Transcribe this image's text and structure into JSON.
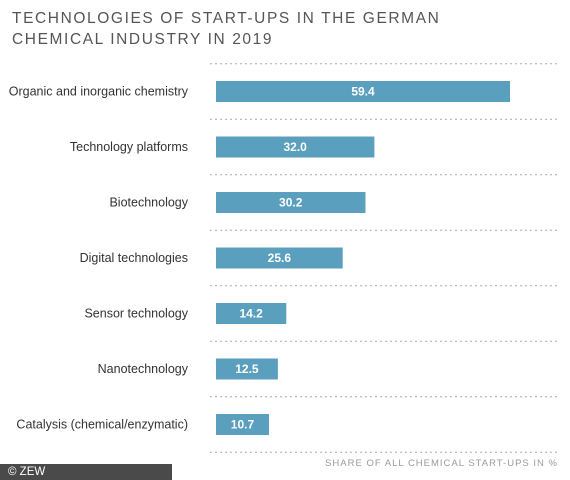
{
  "chart_data": {
    "type": "bar",
    "orientation": "horizontal",
    "title_lines": [
      "TECHNOLOGIES OF START-UPS IN THE GERMAN",
      "CHEMICAL INDUSTRY IN 2019"
    ],
    "categories": [
      "Organic and inorganic chemistry",
      "Technology platforms",
      "Biotechnology",
      "Digital technologies",
      "Sensor technology",
      "Nanotechnology",
      "Catalysis (chemical/enzymatic)"
    ],
    "values": [
      59.4,
      32.0,
      30.2,
      25.6,
      14.2,
      12.5,
      10.7
    ],
    "value_labels": [
      "59.4",
      "32.0",
      "30.2",
      "25.6",
      "14.2",
      "12.5",
      "10.7"
    ],
    "xlabel": "SHARE OF ALL CHEMICAL START-UPS IN %",
    "ylabel": "",
    "xlim": [
      0,
      70
    ],
    "grid": false,
    "bar_color": "#5b9fbf"
  },
  "footer": {
    "credit": "© ZEW"
  }
}
